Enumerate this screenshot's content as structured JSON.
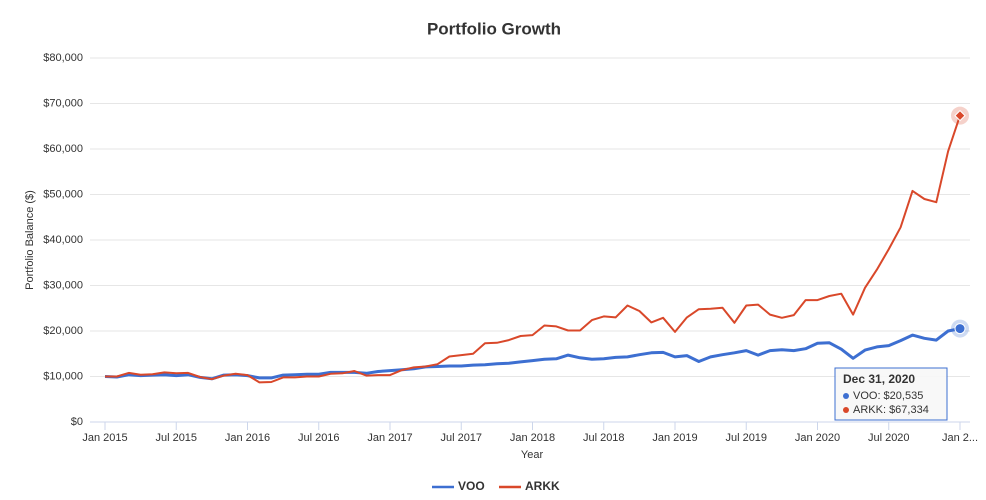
{
  "chart_data": {
    "type": "line",
    "title": "Portfolio Growth",
    "xlabel": "Year",
    "ylabel": "Portfolio Balance ($)",
    "categories": [
      "Jan 2015",
      null,
      null,
      null,
      null,
      null,
      "Jul 2015",
      null,
      null,
      null,
      null,
      null,
      "Jan 2016",
      null,
      null,
      null,
      null,
      null,
      "Jul 2016",
      null,
      null,
      null,
      null,
      null,
      "Jan 2017",
      null,
      null,
      null,
      null,
      null,
      "Jul 2017",
      null,
      null,
      null,
      null,
      null,
      "Jan 2018",
      null,
      null,
      null,
      null,
      null,
      "Jul 2018",
      null,
      null,
      null,
      null,
      null,
      "Jan 2019",
      null,
      null,
      null,
      null,
      null,
      "Jul 2019",
      null,
      null,
      null,
      null,
      null,
      "Jan 2020",
      null,
      null,
      null,
      null,
      null,
      "Jul 2020",
      null,
      null,
      null,
      null,
      null,
      "Jan 2..."
    ],
    "series": [
      {
        "name": "VOO",
        "color": "#3d6fd1",
        "values": [
          10000,
          9900,
          10400,
          10200,
          10300,
          10400,
          10200,
          10400,
          9800,
          9500,
          10300,
          10400,
          10200,
          9700,
          9700,
          10300,
          10400,
          10500,
          10500,
          10900,
          10900,
          10900,
          10700,
          11100,
          11300,
          11500,
          11700,
          12100,
          12200,
          12300,
          12300,
          12500,
          12600,
          12800,
          12900,
          13200,
          13500,
          13800,
          13900,
          14700,
          14100,
          13800,
          13900,
          14200,
          14300,
          14800,
          15200,
          15300,
          14300,
          14600,
          13300,
          14300,
          14800,
          15200,
          15700,
          14700,
          15700,
          15900,
          15700,
          16100,
          17300,
          17400,
          16000,
          14000,
          15800,
          16500,
          16800,
          17900,
          19100,
          18400,
          18000,
          20000,
          20535
        ]
      },
      {
        "name": "ARKK",
        "color": "#d9482a",
        "values": [
          10000,
          10000,
          10800,
          10400,
          10500,
          10900,
          10700,
          10800,
          9900,
          9400,
          10200,
          10600,
          10300,
          8700,
          8800,
          9800,
          9800,
          10000,
          10000,
          10600,
          10700,
          11200,
          10200,
          10300,
          10300,
          11400,
          12000,
          12200,
          12700,
          14400,
          14700,
          15000,
          17300,
          17400,
          18000,
          18900,
          19100,
          21200,
          21000,
          20100,
          20100,
          22400,
          23200,
          23000,
          25600,
          24400,
          21900,
          22900,
          19800,
          23000,
          24800,
          24900,
          25100,
          21800,
          25600,
          25800,
          23600,
          22900,
          23500,
          26800,
          26800,
          27700,
          28200,
          23600,
          29500,
          33500,
          38000,
          42800,
          50800,
          49000,
          48300,
          59500,
          67334
        ]
      }
    ],
    "ylim": [
      0,
      80000
    ],
    "yticks": [
      {
        "value": 0,
        "label": "$0"
      },
      {
        "value": 10000,
        "label": "$10,000"
      },
      {
        "value": 20000,
        "label": "$20,000"
      },
      {
        "value": 30000,
        "label": "$30,000"
      },
      {
        "value": 40000,
        "label": "$40,000"
      },
      {
        "value": 50000,
        "label": "$50,000"
      },
      {
        "value": 60000,
        "label": "$60,000"
      },
      {
        "value": 70000,
        "label": "$70,000"
      },
      {
        "value": 80000,
        "label": "$80,000"
      }
    ],
    "grid": true,
    "legend": "bottom",
    "tooltip": {
      "title": "Dec 31, 2020",
      "items": [
        "VOO: $20,535",
        "ARKK: $67,334"
      ]
    }
  }
}
